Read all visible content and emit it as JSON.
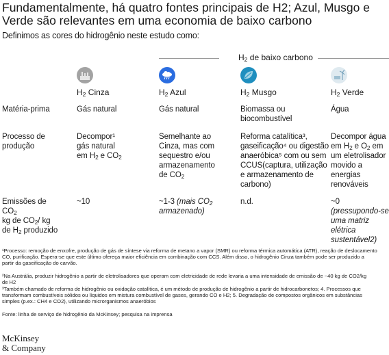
{
  "title": "Fundamentalmente, há quatro fontes principais de H2; Azul, Musgo e Verde são relevantes em uma economia de baixo carbono",
  "intro": "Definimos as cores do hidrogênio neste estudo como:",
  "low_carbon_label_pre": "H",
  "low_carbon_label_sub": "2",
  "low_carbon_label_post": " de baixo carbono",
  "columns": [
    {
      "pre": "H",
      "sub": "2",
      "post": " Cinza",
      "icon": "factory-icon",
      "color": "#9e9e9e"
    },
    {
      "pre": "H",
      "sub": "2",
      "post": " Azul",
      "icon": "blue-cloud-icon",
      "color": "#2b6de0"
    },
    {
      "pre": "H",
      "sub": "2",
      "post": " Musgo",
      "icon": "leaf-icon",
      "color": "#1f8fbf"
    },
    {
      "pre": "H",
      "sub": "2",
      "post": " Verde",
      "icon": "wind-solar-icon",
      "color": "#bcd3de"
    }
  ],
  "rows": {
    "feedstock": {
      "label": "Matéria-prima",
      "cinza": "Gás natural",
      "azul": "Gás natural",
      "musgo_1": "Biomassa ou",
      "musgo_2": "biocombustível",
      "verde": "Água"
    },
    "process": {
      "label_1": "Processo de",
      "label_2": "produção",
      "cinza_1": "Decompor¹",
      "cinza_2": "gás natural",
      "cinza_3_pre": "em H",
      "cinza_3_mid": " e CO",
      "azul_1": "Semelhante ao",
      "azul_2": "Cinza, mas com",
      "azul_3": "sequestro e/ou",
      "azul_4": "armazenamento",
      "azul_5_pre": "de CO",
      "musgo_1": "Reforma catalítica³,",
      "musgo_2": "gaseificação⁴ ou digestão",
      "musgo_3": "anaeróbica⁵ com ou sem",
      "musgo_4": "CCUS(captura, utilização",
      "musgo_5": "e armazenamento de",
      "musgo_6": "carbono)",
      "verde_1": "Decompor água",
      "verde_2_pre": "em H",
      "verde_2_mid": " e O",
      "verde_2_post": " em",
      "verde_3": "um eletrolisador",
      "verde_4": "movido a energias",
      "verde_5": "renováveis"
    },
    "emissions": {
      "label_1": "Emissões de",
      "label_2_pre": "CO",
      "label_3_pre": "kg de CO",
      "label_3_post": "/ kg",
      "label_4_pre": "de H",
      "label_4_post": " produzido",
      "cinza": "~10",
      "azul_val": "~1-3",
      "azul_note_1": "(mais CO",
      "azul_note_2": "armazenado)",
      "musgo": "n.d.",
      "verde_1": "~0",
      "verde_2": "(pressupondo-se",
      "verde_3": "uma matriz elétrica",
      "verde_4": "sustentável2)"
    },
    "sub2": "2"
  },
  "footnotes": [
    "¹Processo: remoção de enxofre, produção de gás de síntese via reforma de metano a vapor (SMR) ou reforma térmica automática (ATR), reação de deslocamento",
    "CO, purificação. Espera-se que este último ofereça maior eficiência em combinação com CCS. Além disso, o hidrogênio Cinza também pode ser produzido a",
    "partir da gaseificação do carvão.",
    "²Na Austrália, produzir hidrogênio a partir de eletrolisadores que operam com eletricidade de rede levaria a uma intensidade de emissão de ~40 kg de CO2/kg",
    "de H2",
    "³Também chamado de reforma de hidrogênio ou oxidação catalítica, é um método de produção de hidrogênio a partir de hidrocarbonetos; 4. Processos que",
    "transformam combustíveis sólidos ou líquidos em mistura combustível de gases, gerando CO e H2; 5. Degradação de compostos orgânicos em substâncias",
    "simples (p.ex.: CH4 e CO2), utilizando microrganismos anaeróbios"
  ],
  "source": "Fonte: linha de serviço de hidrogênio da McKinsey; pesquisa na imprensa",
  "logo_line_1": "McKinsey",
  "logo_line_2": "& Company"
}
